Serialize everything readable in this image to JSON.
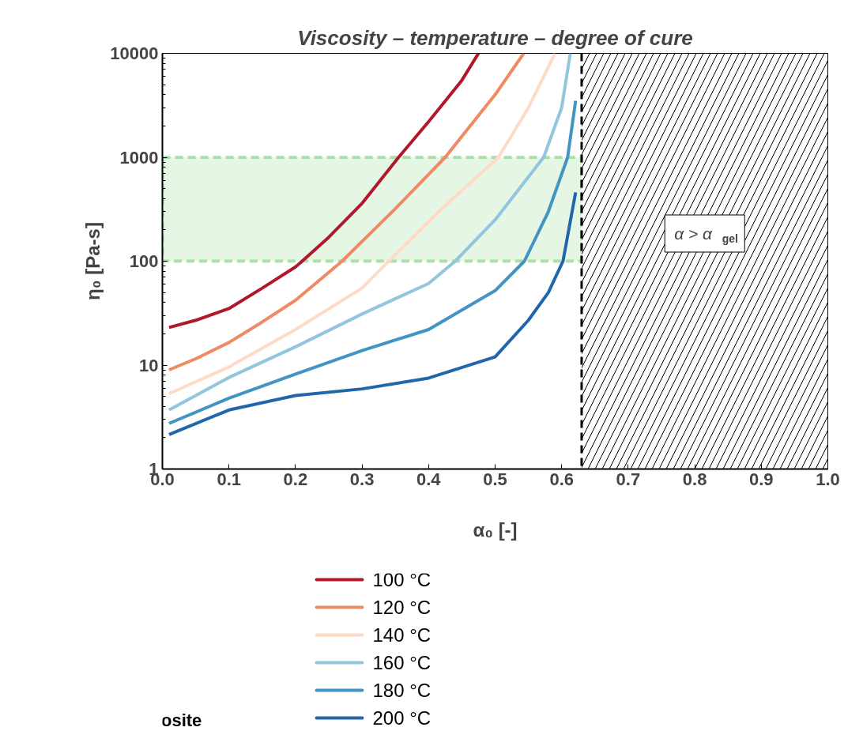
{
  "chart_data": {
    "type": "line",
    "title": "Viscosity – temperature – degree of cure",
    "xlabel": "α₀ [-]",
    "ylabel": "η₀ [Pa-s]",
    "series": [
      {
        "name": "100 °C",
        "color": "#b2182b",
        "x": [
          0.01,
          0.05,
          0.1,
          0.15,
          0.2,
          0.21,
          0.25,
          0.3,
          0.355,
          0.4,
          0.45,
          0.475
        ],
        "values": [
          23,
          27,
          35,
          55,
          88,
          100,
          170,
          360,
          1000,
          2200,
          5500,
          10000
        ]
      },
      {
        "name": "120 °C",
        "color": "#ef8a62",
        "x": [
          0.01,
          0.05,
          0.1,
          0.15,
          0.2,
          0.27,
          0.35,
          0.425,
          0.5,
          0.543
        ],
        "values": [
          9,
          11.5,
          16.5,
          26,
          42,
          100,
          320,
          1000,
          4000,
          10000
        ]
      },
      {
        "name": "140 °C",
        "color": "#fddbc7",
        "x": [
          0.01,
          0.1,
          0.2,
          0.3,
          0.34,
          0.42,
          0.505,
          0.55,
          0.59
        ],
        "values": [
          5.3,
          9.6,
          22,
          55,
          100,
          320,
          1000,
          3000,
          10000
        ]
      },
      {
        "name": "160 °C",
        "color": "#92c5de",
        "x": [
          0.01,
          0.1,
          0.2,
          0.3,
          0.4,
          0.44,
          0.5,
          0.573,
          0.6,
          0.613
        ],
        "values": [
          3.7,
          7.6,
          15,
          31,
          61,
          100,
          250,
          1000,
          3000,
          10000
        ]
      },
      {
        "name": "180 °C",
        "color": "#4393c3",
        "x": [
          0.01,
          0.1,
          0.2,
          0.3,
          0.4,
          0.5,
          0.544,
          0.58,
          0.609,
          0.621
        ],
        "values": [
          2.75,
          4.8,
          8.2,
          13.8,
          22,
          52,
          100,
          300,
          1000,
          3500
        ]
      },
      {
        "name": "200 °C",
        "color": "#2166ac",
        "x": [
          0.01,
          0.1,
          0.2,
          0.3,
          0.4,
          0.5,
          0.55,
          0.58,
          0.602,
          0.621
        ],
        "values": [
          2.15,
          3.7,
          5.1,
          5.9,
          7.5,
          12,
          27,
          50,
          100,
          460
        ]
      }
    ],
    "xlim": [
      0,
      1
    ],
    "ylim": [
      1,
      10000
    ],
    "log": "y",
    "xticks": [
      {
        "value": 0,
        "label": "0.0"
      },
      0.1,
      0.2,
      0.3,
      0.4,
      0.5,
      0.6,
      0.7,
      0.8,
      0.9,
      {
        "value": 1,
        "label": "1.0"
      }
    ],
    "yticks": [
      1,
      10,
      100,
      1000,
      10000
    ],
    "ref_lines": [
      {
        "axis": "x",
        "value": 0.63,
        "color": "#000000",
        "line_style": "dashed"
      }
    ],
    "bands": [
      {
        "axis": "y",
        "from": 100,
        "to": 1000,
        "color": "#00aa00"
      },
      {
        "axis": "x",
        "from": 0.63,
        "to": 1,
        "label": "α > α$_{gel}$",
        "color": "#000000"
      }
    ],
    "annotations": [
      "osite"
    ],
    "grid": false,
    "legend": "bottom",
    "marker": "none",
    "line_style": "solid"
  }
}
